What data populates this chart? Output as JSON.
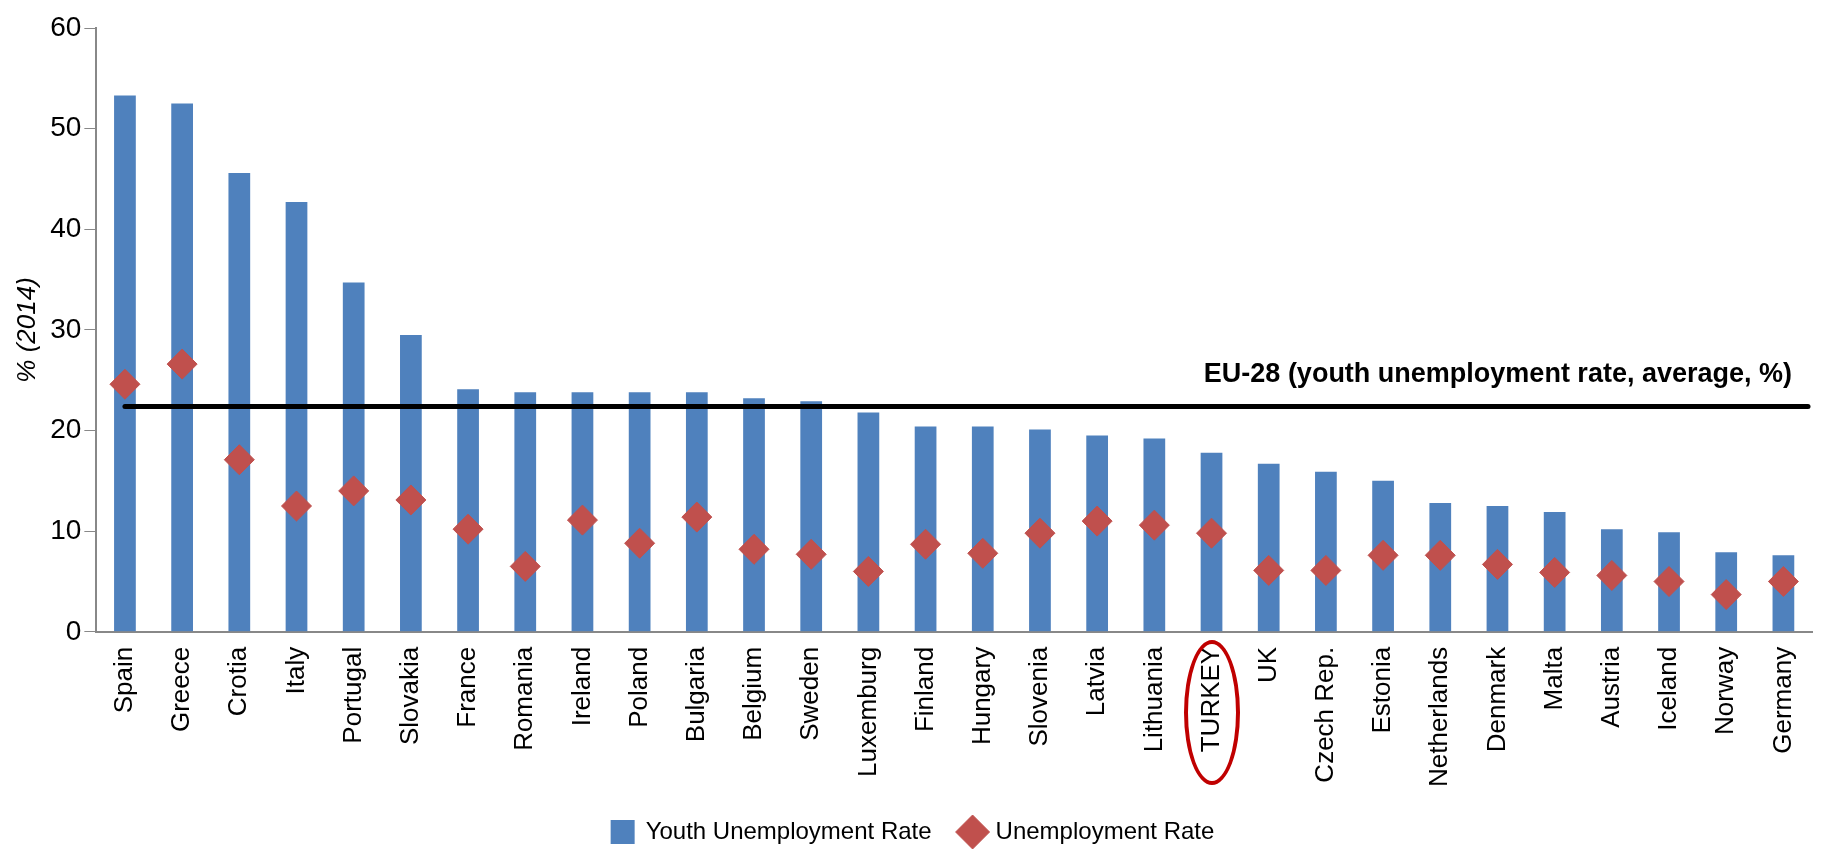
{
  "chart_data": {
    "type": "bar",
    "ylabel": "% (2014)",
    "categories": [
      "Spain",
      "Greece",
      "Crotia",
      "Italy",
      "Portugal",
      "Slovakia",
      "France",
      "Romania",
      "Ireland",
      "Poland",
      "Bulgaria",
      "Belgium",
      "Sweden",
      "Luxemburg",
      "Finland",
      "Hungary",
      "Slovenia",
      "Latvia",
      "Lithuania",
      "TURKEY",
      "UK",
      "Czech Rep.",
      "Estonia",
      "Netherlands",
      "Denmark",
      "Malta",
      "Austria",
      "Iceland",
      "Norway",
      "Germany"
    ],
    "series": [
      {
        "name": "Youth Unemployment Rate",
        "color": "#4f81bd",
        "values": [
          53.3,
          52.5,
          45.6,
          42.7,
          34.7,
          29.5,
          24.1,
          23.8,
          23.8,
          23.8,
          23.8,
          23.2,
          22.9,
          21.8,
          20.4,
          20.4,
          20.1,
          19.5,
          19.2,
          17.8,
          16.7,
          15.9,
          15.0,
          12.8,
          12.5,
          11.9,
          10.2,
          9.9,
          7.9,
          7.6
        ]
      },
      {
        "name": "Unemployment Rate",
        "type": "scatter",
        "marker": "diamond",
        "color": "#c0504d",
        "values": [
          24.6,
          26.6,
          17.1,
          12.5,
          14.0,
          13.1,
          10.2,
          6.5,
          11.1,
          8.8,
          11.4,
          8.2,
          7.7,
          6.0,
          8.7,
          7.8,
          9.8,
          11.0,
          10.6,
          9.8,
          6.1,
          6.1,
          7.6,
          7.6,
          6.7,
          5.9,
          5.6,
          5.0,
          3.7,
          5.0
        ]
      }
    ],
    "ylim": [
      0,
      60
    ],
    "yticks": [
      0,
      10,
      20,
      30,
      40,
      50,
      60
    ],
    "grid": false,
    "legend": "bottom",
    "ref_lines": [
      {
        "axis": "y",
        "value": 22.4,
        "label": "EU-28 (youth unemployment rate, average, %)",
        "color": "#000000"
      }
    ]
  }
}
